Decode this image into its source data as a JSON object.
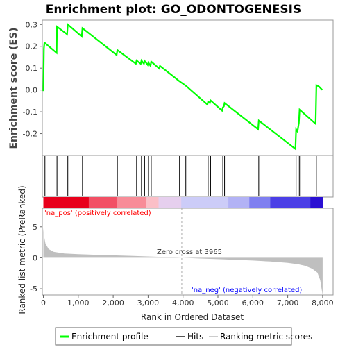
{
  "chart_data": {
    "type": "line",
    "title": "Enrichment plot: GO_ODONTOGENESIS",
    "panels": {
      "enrichment": {
        "ylabel": "Enrichment score (ES)",
        "ylim": [
          -0.3,
          0.32
        ],
        "yticks": [
          -0.2,
          -0.1,
          0.0,
          0.1,
          0.2,
          0.3
        ],
        "ytick_labels": [
          "-0.2",
          "-0.1",
          "0.0",
          "0.1",
          "0.2",
          "0.3"
        ],
        "series": [
          {
            "name": "Enrichment profile",
            "color": "#00ff00",
            "x": [
              0,
              15,
              30,
              45,
              380,
              390,
              680,
              700,
              1100,
              1120,
              2100,
              2120,
              2650,
              2670,
              2790,
              2810,
              2880,
              2900,
              2990,
              3010,
              3070,
              3090,
              3320,
              3340,
              3900,
              4080,
              4700,
              4720,
              4770,
              4790,
              5120,
              5140,
              5170,
              5190,
              6150,
              6170,
              7220,
              7240,
              7280,
              7300,
              7320,
              7340,
              7800,
              7820,
              7900,
              7990
            ],
            "y": [
              -0.005,
              0.19,
              0.215,
              0.215,
              0.17,
              0.29,
              0.255,
              0.3,
              0.245,
              0.283,
              0.16,
              0.183,
              0.12,
              0.135,
              0.12,
              0.135,
              0.12,
              0.133,
              0.115,
              0.125,
              0.11,
              0.13,
              0.098,
              0.11,
              0.04,
              0.02,
              -0.067,
              -0.053,
              -0.06,
              -0.048,
              -0.095,
              -0.08,
              -0.075,
              -0.06,
              -0.18,
              -0.14,
              -0.27,
              -0.18,
              -0.19,
              -0.17,
              -0.15,
              -0.09,
              -0.155,
              0.022,
              0.015,
              0.0
            ]
          }
        ]
      },
      "hits": {
        "series_name": "Hits",
        "positions": [
          45,
          390,
          700,
          1120,
          2120,
          2670,
          2810,
          2900,
          3010,
          3090,
          3340,
          3900,
          4080,
          4720,
          4790,
          5140,
          5190,
          6170,
          7240,
          7300,
          7340,
          7820
        ]
      },
      "ranking": {
        "series_name": "Ranking metric scores",
        "ylabel": "Ranked list metric (PreRanked)",
        "xlabel": "Rank in Ordered Dataset",
        "ylim": [
          -6,
          8
        ],
        "yticks": [
          -5,
          0,
          5
        ],
        "ytick_labels": [
          "-5",
          "0",
          "5"
        ],
        "xticks": [
          0,
          1000,
          2000,
          3000,
          4000,
          5000,
          6000,
          7000,
          8000
        ],
        "xtick_labels": [
          "0",
          "1,000",
          "2,000",
          "3,000",
          "4,000",
          "5,000",
          "6,000",
          "7,000",
          "8,000"
        ],
        "n_genes": 8000,
        "zero_cross": 3965,
        "metric_profile": {
          "rank": [
            0,
            20,
            60,
            150,
            300,
            600,
            1000,
            1500,
            2000,
            2500,
            3000,
            3500,
            3965,
            4500,
            5000,
            5500,
            6000,
            6500,
            7000,
            7300,
            7500,
            7700,
            7850,
            7930,
            7970,
            8000
          ],
          "value": [
            4.8,
            3.5,
            2.3,
            1.4,
            0.95,
            0.7,
            0.58,
            0.48,
            0.4,
            0.32,
            0.22,
            0.12,
            0.0,
            -0.12,
            -0.22,
            -0.33,
            -0.45,
            -0.6,
            -0.82,
            -1.05,
            -1.3,
            -1.75,
            -2.4,
            -3.6,
            -5.0,
            -6.0
          ]
        },
        "annotations": {
          "pos": "'na_pos' (positively correlated)",
          "neg": "'na_neg' (negatively correlated)",
          "zero_cross": "Zero cross at 3965"
        }
      }
    },
    "colors": {
      "enrichment_line": "#00ff00",
      "hit_line": "#000000",
      "metric_fill": "#bfbfbf",
      "pos_text": "#ff0000",
      "neg_text": "#0000ff",
      "zero_line": "#aaaaaa",
      "heat_segments": [
        "#e8001c",
        "#f25065",
        "#f88c98",
        "#fbbfc7",
        "#e6cfee",
        "#ccccf8",
        "#b2b2f5",
        "#7f7ff0",
        "#4b3fe6",
        "#2a0fd2"
      ]
    },
    "legend": {
      "position": "bottom",
      "items": [
        "Enrichment profile",
        "Hits",
        "Ranking metric scores"
      ]
    }
  }
}
